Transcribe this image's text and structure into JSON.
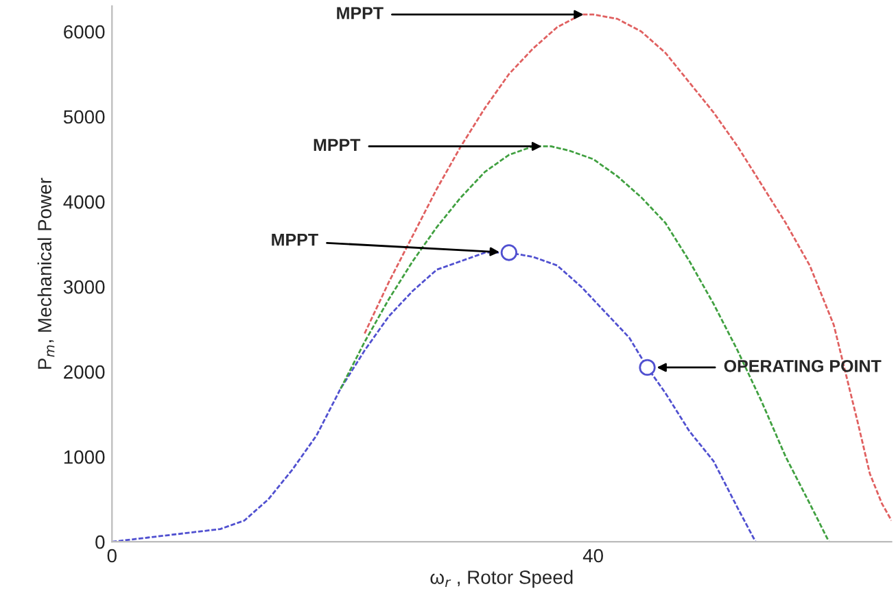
{
  "chart_data": {
    "type": "line",
    "xlabel": "ω$_{r}$ , Rotor Speed",
    "ylabel": "P$_{m}$, Mechanical Power",
    "xlim": [
      0,
      64.8
    ],
    "ylim": [
      0,
      6300
    ],
    "xticks": [
      0,
      40
    ],
    "yticks": [
      0,
      1000,
      2000,
      3000,
      4000,
      5000,
      6000
    ],
    "grid": false,
    "legend": false,
    "line_style": "dashed",
    "marker": "none",
    "series": [
      {
        "color": "#e06060",
        "x": [
          21,
          23,
          25,
          27,
          29,
          31,
          33,
          35,
          37,
          39,
          40,
          42,
          44,
          46,
          48,
          50,
          52,
          54,
          56,
          58,
          60,
          62,
          63,
          64,
          64.8
        ],
        "values": [
          2450,
          3050,
          3600,
          4150,
          4650,
          5100,
          5500,
          5800,
          6050,
          6200,
          6200,
          6150,
          6000,
          5750,
          5400,
          5050,
          4650,
          4200,
          3750,
          3250,
          2550,
          1400,
          800,
          450,
          250
        ]
      },
      {
        "color": "#40a040",
        "x": [
          19,
          21,
          23,
          25,
          27,
          29,
          31,
          33,
          35,
          36.5,
          38,
          40,
          42,
          44,
          46,
          48,
          50,
          52,
          54,
          56,
          58,
          59.6
        ],
        "values": [
          1800,
          2350,
          2850,
          3300,
          3700,
          4050,
          4350,
          4550,
          4650,
          4650,
          4600,
          4500,
          4300,
          4050,
          3750,
          3300,
          2800,
          2250,
          1650,
          1000,
          450,
          0
        ]
      },
      {
        "color": "#5050d0",
        "x": [
          0,
          3,
          6,
          9,
          11,
          13,
          15,
          17,
          19,
          21,
          23,
          25,
          27,
          29,
          31,
          33,
          35,
          37,
          39,
          41,
          43,
          44.5,
          46,
          48,
          50,
          52,
          53.5
        ],
        "values": [
          0,
          50,
          100,
          150,
          250,
          500,
          850,
          1250,
          1800,
          2250,
          2650,
          2950,
          3200,
          3300,
          3400,
          3400,
          3350,
          3250,
          3000,
          2700,
          2400,
          2050,
          1750,
          1300,
          950,
          400,
          0
        ]
      },
      {
        "type": "scatter",
        "marker": "circle",
        "color": "#5050d0",
        "x": [
          33,
          44.5
        ],
        "values": [
          3400,
          2050
        ]
      }
    ],
    "annotations": [
      {
        "text": "MPPT",
        "x": 40,
        "y": 6200
      },
      {
        "text": "MPPT",
        "x": 36.5,
        "y": 4650
      },
      {
        "text": "MPPT",
        "x": 33,
        "y": 3400
      },
      {
        "text": "OPERATING POINT",
        "x": 44.5,
        "y": 2050
      }
    ]
  }
}
